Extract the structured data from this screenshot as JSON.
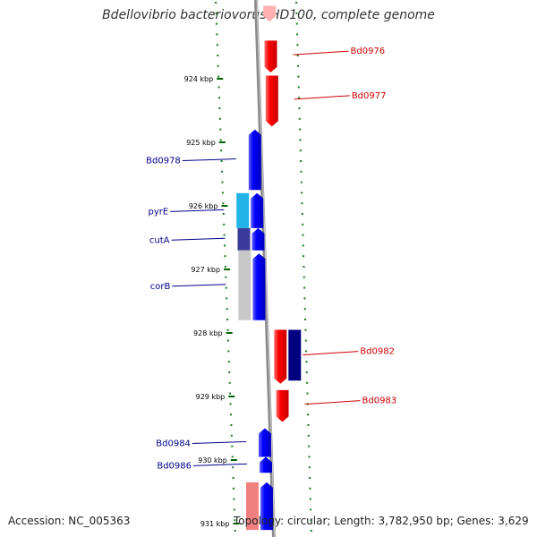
{
  "title": "Bdellovibrio bacteriovorus HD100, complete genome",
  "accession_text": "Accession: NC_005363",
  "topology_text": "Topology: circular; Length: 3,782,950 bp; Genes: 3,629",
  "colors": {
    "forward_gene": "#0000ff",
    "reverse_gene": "#ff0000",
    "pyrE": "#22b4e6",
    "cutA": "#3a3a9a",
    "corB": "#c8c8c8",
    "Bd0982_partner": "#000080",
    "forward_label": "#00008b",
    "reverse_label": "#cc0000",
    "gc_ticks": "#006400"
  },
  "chart_data": {
    "type": "genome-map",
    "scale_unit": "kbp",
    "kbp_ticks": [
      "924 kbp",
      "925 kbp",
      "926 kbp",
      "927 kbp",
      "928 kbp",
      "929 kbp",
      "930 kbp",
      "931 kbp"
    ],
    "kbp_start": 924,
    "kbp_end": 931,
    "genes": [
      {
        "label": "",
        "strand": "reverse",
        "start_kbp": 922.85,
        "end_kbp": 923.1,
        "color": "#ffb0b0"
      },
      {
        "label": "Bd0976",
        "strand": "reverse",
        "start_kbp": 923.4,
        "end_kbp": 923.9,
        "color": "#ff0000"
      },
      {
        "label": "Bd0977",
        "strand": "reverse",
        "start_kbp": 923.95,
        "end_kbp": 924.75,
        "color": "#ff0000"
      },
      {
        "label": "Bd0978",
        "strand": "forward",
        "start_kbp": 924.8,
        "end_kbp": 925.75,
        "color": "#0000ff"
      },
      {
        "label": "",
        "strand": "forward",
        "start_kbp": 925.8,
        "end_kbp": 926.35,
        "color": "#0000ff"
      },
      {
        "label": "",
        "strand": "forward",
        "start_kbp": 926.35,
        "end_kbp": 926.7,
        "color": "#0000ff"
      },
      {
        "label": "",
        "strand": "forward",
        "start_kbp": 926.75,
        "end_kbp": 927.8,
        "color": "#0000ff"
      },
      {
        "label": "pyrE",
        "strand": "feature",
        "start_kbp": 925.8,
        "end_kbp": 926.35,
        "color": "#22b4e6"
      },
      {
        "label": "cutA",
        "strand": "feature",
        "start_kbp": 926.35,
        "end_kbp": 926.7,
        "color": "#3a3a9a"
      },
      {
        "label": "corB",
        "strand": "feature",
        "start_kbp": 926.7,
        "end_kbp": 927.8,
        "color": "#c8c8c8"
      },
      {
        "label": "Bd0982",
        "strand": "reverse",
        "start_kbp": 927.95,
        "end_kbp": 928.8,
        "color": "#ff0000"
      },
      {
        "label": "",
        "strand": "feature-reverse",
        "start_kbp": 927.95,
        "end_kbp": 928.75,
        "color": "#000080"
      },
      {
        "label": "Bd0983",
        "strand": "reverse",
        "start_kbp": 928.9,
        "end_kbp": 929.4,
        "color": "#ff0000"
      },
      {
        "label": "Bd0984",
        "strand": "forward",
        "start_kbp": 929.5,
        "end_kbp": 929.95,
        "color": "#0000ff"
      },
      {
        "label": "Bd0986",
        "strand": "forward",
        "start_kbp": 929.95,
        "end_kbp": 930.2,
        "color": "#0000ff"
      },
      {
        "label": "",
        "strand": "forward",
        "start_kbp": 930.35,
        "end_kbp": 931.1,
        "color": "#0000ff"
      },
      {
        "label": "",
        "strand": "feature",
        "start_kbp": 930.35,
        "end_kbp": 931.1,
        "color": "#f08080"
      }
    ]
  }
}
